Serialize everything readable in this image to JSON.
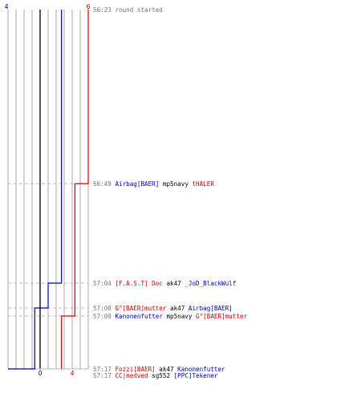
{
  "chart_data": {
    "type": "line",
    "title": "",
    "xlabel": "",
    "ylabel": "",
    "xlim": [
      0,
      6
    ],
    "x_ticks": [
      0,
      4
    ],
    "top_ticks": [
      4,
      6
    ],
    "grid": true,
    "colors": {
      "blue": "#0000aa",
      "red": "#cc0000",
      "grid": "#aaaaaa",
      "zero": "#555555",
      "guide": "#bbbbbb",
      "time": "#777777",
      "black": "#000000"
    },
    "series": [
      {
        "color": "blue",
        "points": [
          [
            4,
            "56:23"
          ],
          [
            4,
            "57:04"
          ],
          [
            3,
            "57:04"
          ],
          [
            3,
            "57:08"
          ],
          [
            2,
            "57:08"
          ],
          [
            2,
            "57:17"
          ],
          [
            1,
            "57:17"
          ],
          [
            0,
            "57:17"
          ]
        ]
      },
      {
        "color": "red",
        "points": [
          [
            6,
            "56:23"
          ],
          [
            6,
            "56:49"
          ],
          [
            5,
            "56:49"
          ],
          [
            5,
            "57:09"
          ],
          [
            4,
            "57:09"
          ],
          [
            4,
            "57:17"
          ]
        ]
      }
    ],
    "events": [
      {
        "time": "56:23",
        "parts": [
          {
            "text": "round started",
            "color": "time"
          }
        ]
      },
      {
        "time": "56:49",
        "parts": [
          {
            "text": "Airbag[BAER]",
            "color": "blue"
          },
          {
            "text": " mp5navy ",
            "color": "black"
          },
          {
            "text": "tHALER",
            "color": "red"
          }
        ]
      },
      {
        "time": "57:04",
        "parts": [
          {
            "text": "[F.A.S.T] Doc",
            "color": "red"
          },
          {
            "text": "  ak47 ",
            "color": "black"
          },
          {
            "text": "_JoD_BlackWulf",
            "color": "blue"
          }
        ]
      },
      {
        "time": "57:08",
        "parts": [
          {
            "text": "G^[BAER]mutter",
            "color": "red"
          },
          {
            "text": " ak47 ",
            "color": "black"
          },
          {
            "text": "Airbag[BAER]",
            "color": "blue"
          }
        ]
      },
      {
        "time": "57:09",
        "parts": [
          {
            "text": "Kanonenfutter",
            "color": "blue"
          },
          {
            "text": " mp5navy ",
            "color": "black"
          },
          {
            "text": "G^[BAER]mutter",
            "color": "red"
          }
        ]
      },
      {
        "time": "57:17",
        "parts": [
          {
            "text": "Fozzi[BAER]",
            "color": "red"
          },
          {
            "text": " ak47 ",
            "color": "black"
          },
          {
            "text": "Kanonenfutter",
            "color": "blue"
          }
        ]
      },
      {
        "time": "57:17",
        "parts": [
          {
            "text": "CC|medved",
            "color": "red"
          },
          {
            "text": " sg552 ",
            "color": "black"
          },
          {
            "text": "[PPC]Tekener",
            "color": "blue"
          }
        ]
      }
    ]
  }
}
